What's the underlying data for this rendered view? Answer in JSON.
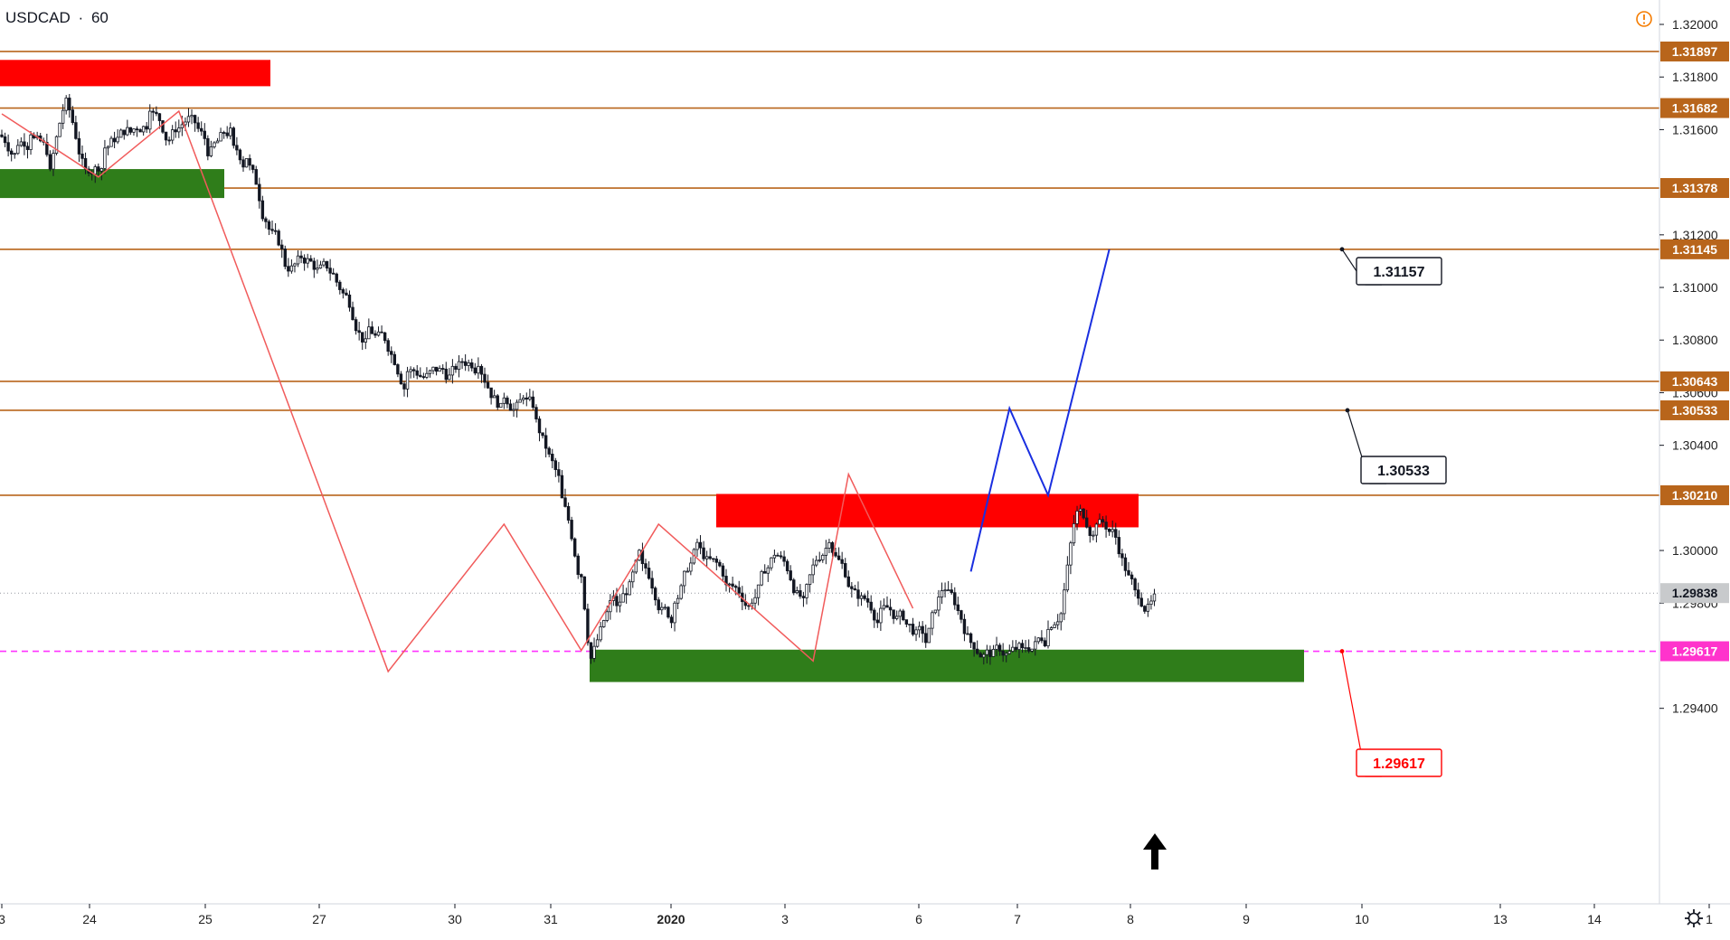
{
  "header": {
    "symbol": "USDCAD",
    "separator": "·",
    "interval": "60",
    "alert_icon": "exclamation-circle-icon"
  },
  "colors": {
    "level_line": "#b8651b",
    "level_label_bg": "#b8651b",
    "support_zone": "#2f7d1a",
    "resistance_zone": "#ff0000",
    "zigzag": "#f15b5b",
    "projection": "#1a2fe0",
    "target_dash": "#ff33ff",
    "target_label_bg": "#ff33cc",
    "current_label_bg": "#c8cacc",
    "candle": "#131722"
  },
  "chart_data": {
    "type": "candlestick",
    "symbol": "USDCAD",
    "timeframe": "60",
    "ylim": [
      1.2928,
      1.3212
    ],
    "x_tick_labels": [
      "3",
      "24",
      "25",
      "27",
      "30",
      "31",
      "2020",
      "3",
      "6",
      "7",
      "8",
      "9",
      "10",
      "13",
      "14",
      "1"
    ],
    "y_tick_labels": [
      "1.32000",
      "1.31800",
      "1.31600",
      "1.31200",
      "1.31000",
      "1.30800",
      "1.30600",
      "1.30400",
      "1.30000",
      "1.29800",
      "1.29400"
    ],
    "horizontal_levels": [
      {
        "price": 1.31897,
        "label": "1.31897"
      },
      {
        "price": 1.31682,
        "label": "1.31682"
      },
      {
        "price": 1.31378,
        "label": "1.31378"
      },
      {
        "price": 1.31145,
        "label": "1.31145"
      },
      {
        "price": 1.30643,
        "label": "1.30643"
      },
      {
        "price": 1.30533,
        "label": "1.30533"
      },
      {
        "price": 1.3021,
        "label": "1.30210"
      }
    ],
    "target_level": {
      "price": 1.29617,
      "label": "1.29617"
    },
    "current_price": {
      "price": 1.29838,
      "label": "1.29838"
    },
    "callouts": [
      {
        "text": "1.31157",
        "price": 1.31145
      },
      {
        "text": "1.30533",
        "price": 1.30533
      },
      {
        "text": "1.29617",
        "price": 1.29617
      }
    ],
    "zones": [
      {
        "type": "resistance",
        "from_price": 1.31765,
        "to_price": 1.31865
      },
      {
        "type": "support",
        "from_price": 1.3134,
        "to_price": 1.3145
      },
      {
        "type": "resistance",
        "from_price": 1.30088,
        "to_price": 1.30215
      },
      {
        "type": "support",
        "from_price": 1.295,
        "to_price": 1.29623
      }
    ],
    "candles": {
      "start": 1.3158,
      "segments": [
        [
          6,
          1.3154
        ],
        [
          4,
          1.3158
        ],
        [
          6,
          1.3145
        ],
        [
          5,
          1.3172
        ],
        [
          6,
          1.3145
        ],
        [
          6,
          1.3153
        ],
        [
          8,
          1.3159
        ],
        [
          6,
          1.3167
        ],
        [
          6,
          1.3156
        ],
        [
          6,
          1.3165
        ],
        [
          6,
          1.315
        ],
        [
          8,
          1.3154
        ],
        [
          4,
          1.3149
        ],
        [
          6,
          1.3125
        ],
        [
          6,
          1.3108
        ],
        [
          8,
          1.311
        ],
        [
          8,
          1.3102
        ],
        [
          10,
          1.3085
        ],
        [
          12,
          1.3068
        ],
        [
          12,
          1.3065
        ],
        [
          10,
          1.307
        ],
        [
          8,
          1.3058
        ],
        [
          6,
          1.3058
        ],
        [
          4,
          1.305
        ],
        [
          8,
          1.302
        ],
        [
          6,
          1.299
        ],
        [
          3,
          1.2959
        ],
        [
          8,
          1.2979
        ],
        [
          8,
          1.2995
        ],
        [
          10,
          1.298
        ],
        [
          8,
          1.3001
        ],
        [
          8,
          1.2987
        ],
        [
          8,
          1.298
        ],
        [
          8,
          1.2998
        ],
        [
          8,
          1.2982
        ],
        [
          8,
          1.3003
        ],
        [
          8,
          1.2985
        ],
        [
          8,
          1.2978
        ],
        [
          8,
          1.2972
        ],
        [
          6,
          1.2965
        ],
        [
          6,
          1.2985
        ],
        [
          8,
          1.2965
        ],
        [
          8,
          1.2964
        ],
        [
          8,
          1.2963
        ],
        [
          8,
          1.297
        ],
        [
          5,
          1.2985
        ],
        [
          4,
          1.3015
        ],
        [
          6,
          1.301
        ],
        [
          6,
          1.3005
        ],
        [
          6,
          1.2985
        ],
        [
          6,
          1.29835
        ]
      ]
    },
    "zigzag": [
      {
        "bar": 0,
        "price": 1.3166
      },
      {
        "bar": 30,
        "price": 1.3142
      },
      {
        "bar": 55,
        "price": 1.3167
      },
      {
        "bar": 120,
        "price": 1.2954
      },
      {
        "bar": 156,
        "price": 1.301
      },
      {
        "bar": 180,
        "price": 1.2962
      },
      {
        "bar": 204,
        "price": 1.301
      },
      {
        "bar": 252,
        "price": 1.2958
      },
      {
        "bar": 263,
        "price": 1.3029
      },
      {
        "bar": 283,
        "price": 1.2978
      }
    ],
    "projection": [
      {
        "bar": 301,
        "price": 1.2992
      },
      {
        "bar": 313,
        "price": 1.3054
      },
      {
        "bar": 325,
        "price": 1.3021
      },
      {
        "bar": 344,
        "price": 1.31145
      }
    ]
  }
}
